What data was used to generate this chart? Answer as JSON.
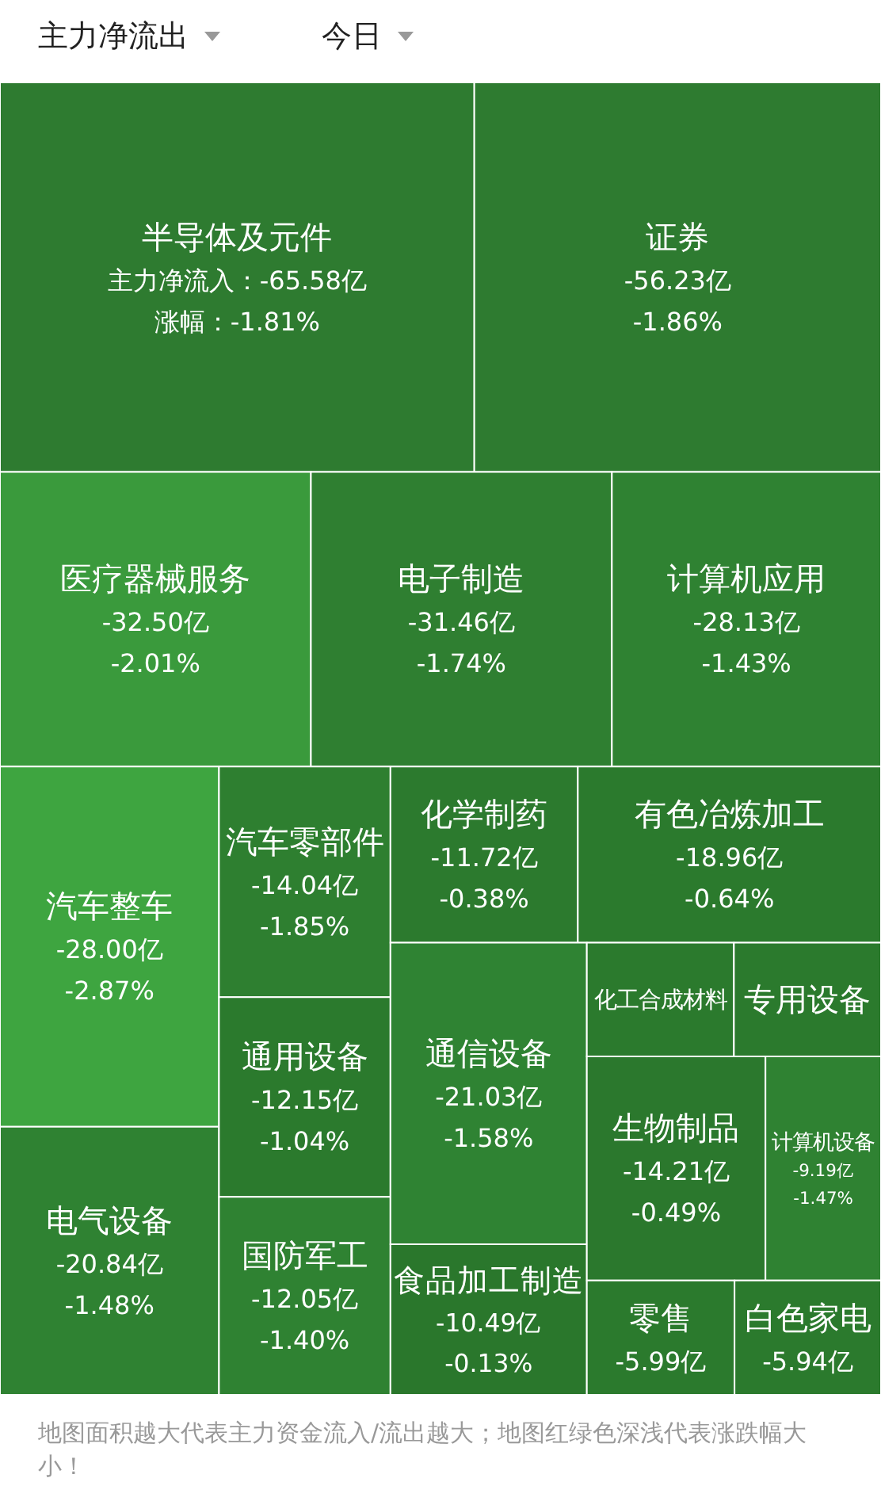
{
  "chart_data": {
    "type": "other",
    "annotations": [
      "主力净流出",
      "今日",
      "地图面积越大代表主力资金流入/流出越大；地图红绿色深浅代表涨跌幅大小！"
    ],
    "categories": [
      "半导体及元件",
      "证券",
      "医疗器械服务",
      "电子制造",
      "计算机应用",
      "汽车整车",
      "电气设备",
      "汽车零部件",
      "通用设备",
      "国防军工",
      "化学制药",
      "有色冶炼加工",
      "通信设备",
      "食品加工制造",
      "化工合成材料",
      "专用设备",
      "生物制品",
      "计算机设备",
      "零售",
      "白色家电"
    ],
    "series": [
      {
        "colors": [
          "#2e7b30",
          "#2e7b30",
          "#3a9a3c",
          "#2f7f31",
          "#2f8232",
          "#3ea540",
          "#2f8232",
          "#2e7f30",
          "#2b7a2d",
          "#2f8232",
          "#2c7a2e",
          "#2b7a2d",
          "#2f8333",
          "#2a772c",
          "#2b7a2d",
          "#2b7a2d",
          "#2b782d",
          "#2f8232",
          "#2b7a2d",
          "#2b7a2d"
        ],
        "values": [
          -65.58,
          -56.23,
          -32.5,
          -31.46,
          -28.13,
          -28.0,
          -20.84,
          -14.04,
          -12.15,
          -12.05,
          -11.72,
          -18.96,
          -21.03,
          -10.49,
          null,
          null,
          -14.21,
          -9.19,
          -5.99,
          -5.94
        ],
        "value_labels": [
          "主力净流入：-65.58亿",
          "-56.23亿",
          "-32.50亿",
          "-31.46亿",
          "-28.13亿",
          "-28.00亿",
          "-20.84亿",
          "-14.04亿",
          "-12.15亿",
          "-12.05亿",
          "-11.72亿",
          "-18.96亿",
          "-21.03亿",
          "-10.49亿",
          null,
          null,
          "-14.21亿",
          "-9.19亿",
          "-5.99亿",
          "-5.94亿"
        ]
      },
      {
        "values": [
          -1.81,
          -1.86,
          -2.01,
          -1.74,
          -1.43,
          -2.87,
          -1.48,
          -1.85,
          -1.04,
          -1.4,
          -0.38,
          -0.64,
          -1.58,
          -0.13,
          null,
          null,
          -0.49,
          -1.47,
          null,
          null
        ],
        "value_labels": [
          "涨幅：-1.81%",
          "-1.86%",
          "-2.01%",
          "-1.74%",
          "-1.43%",
          "-2.87%",
          "-1.48%",
          "-1.85%",
          "-1.04%",
          "-1.40%",
          "-0.38%",
          "-0.64%",
          "-1.58%",
          "-0.13%",
          null,
          null,
          "-0.49%",
          "-1.47%",
          null,
          null
        ]
      }
    ]
  }
}
